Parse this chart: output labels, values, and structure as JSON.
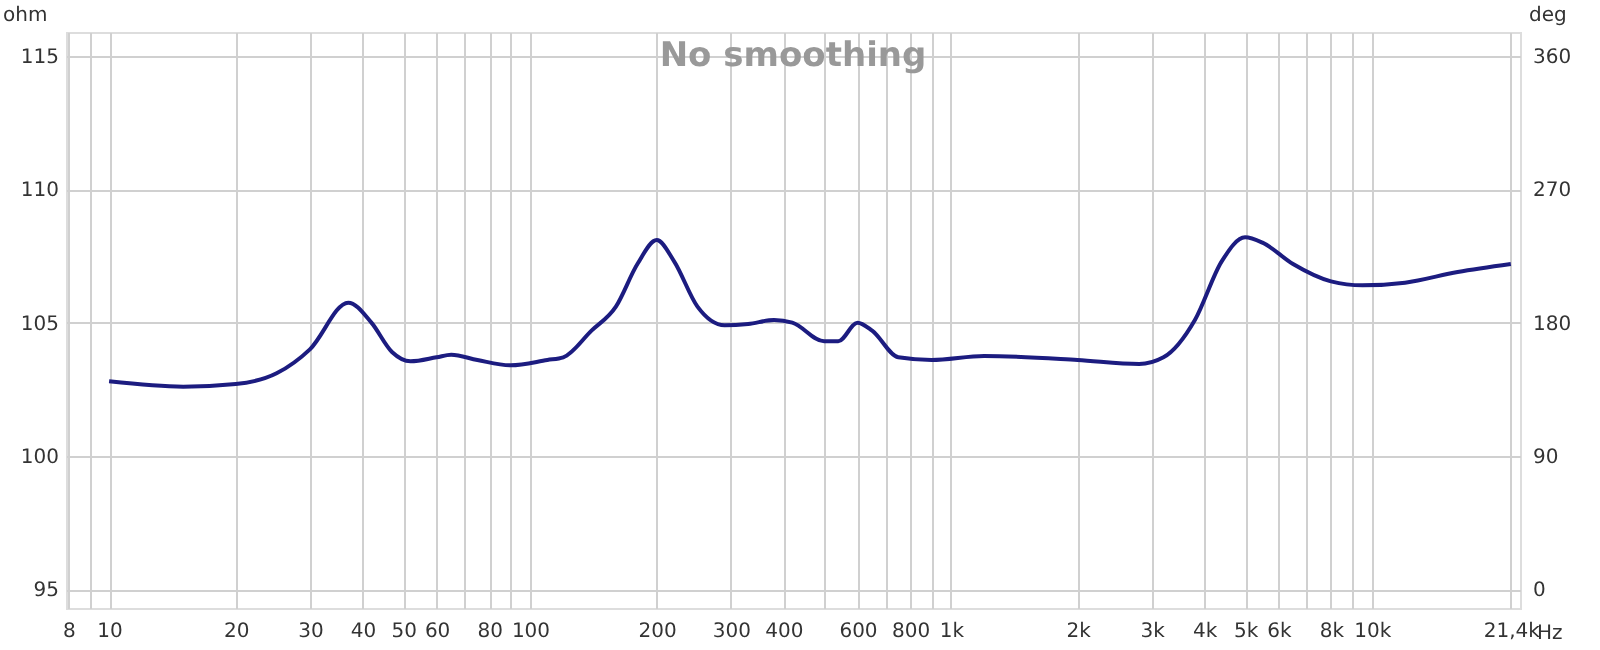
{
  "chart_data": {
    "type": "line",
    "title": "No smoothing",
    "xlabel": "Hz",
    "ylabel": "ohm",
    "y2label": "deg",
    "log": "x",
    "grid": true,
    "marker": "none",
    "line_style": "solid",
    "xlim": [
      7.9,
      22500
    ],
    "ylim": [
      94.3,
      115.9
    ],
    "y2lim": [
      -12.6,
      376.2
    ],
    "xticks": [
      8,
      {
        "value": 9,
        "label": null
      },
      10,
      20,
      30,
      40,
      50,
      60,
      {
        "value": 70,
        "label": null
      },
      80,
      {
        "value": 90,
        "label": null
      },
      100,
      200,
      300,
      400,
      {
        "value": 500,
        "label": null
      },
      600,
      {
        "value": 700,
        "label": null
      },
      800,
      {
        "value": 900,
        "label": null
      },
      {
        "value": 1000,
        "label": "1k"
      },
      {
        "value": 2000,
        "label": "2k"
      },
      {
        "value": 3000,
        "label": "3k"
      },
      {
        "value": 4000,
        "label": "4k"
      },
      {
        "value": 5000,
        "label": "5k"
      },
      {
        "value": 6000,
        "label": "6k"
      },
      {
        "value": 7000,
        "label": null
      },
      {
        "value": 8000,
        "label": "8k"
      },
      {
        "value": 9000,
        "label": null
      },
      {
        "value": 10000,
        "label": "10k"
      },
      {
        "value": 21400,
        "label": "21,4k"
      }
    ],
    "yticks": [
      95,
      100,
      105,
      110,
      115
    ],
    "y2ticks": [
      0,
      90,
      180,
      270,
      360
    ],
    "x": [
      10,
      15,
      20,
      25,
      30,
      37,
      42,
      47,
      52,
      60,
      65,
      75,
      90,
      110,
      120,
      140,
      160,
      180,
      200,
      220,
      250,
      290,
      330,
      380,
      420,
      500,
      540,
      600,
      650,
      750,
      900,
      1200,
      2000,
      2800,
      3200,
      3800,
      4400,
      5000,
      5500,
      6500,
      8000,
      9500,
      12000,
      16000,
      21400
    ],
    "series": [
      {
        "color": "#1c1c80",
        "values": [
          102.8,
          102.6,
          102.7,
          103.1,
          104.0,
          105.75,
          105.0,
          103.9,
          103.55,
          103.7,
          103.8,
          103.6,
          103.4,
          103.6,
          103.7,
          104.7,
          105.6,
          107.2,
          108.1,
          107.3,
          105.6,
          104.9,
          104.95,
          105.1,
          105.0,
          104.3,
          104.3,
          105.0,
          104.7,
          103.7,
          103.6,
          103.75,
          103.6,
          103.45,
          103.7,
          105.1,
          107.3,
          108.2,
          108.0,
          107.2,
          106.55,
          106.4,
          106.5,
          106.9,
          107.2
        ]
      }
    ]
  }
}
